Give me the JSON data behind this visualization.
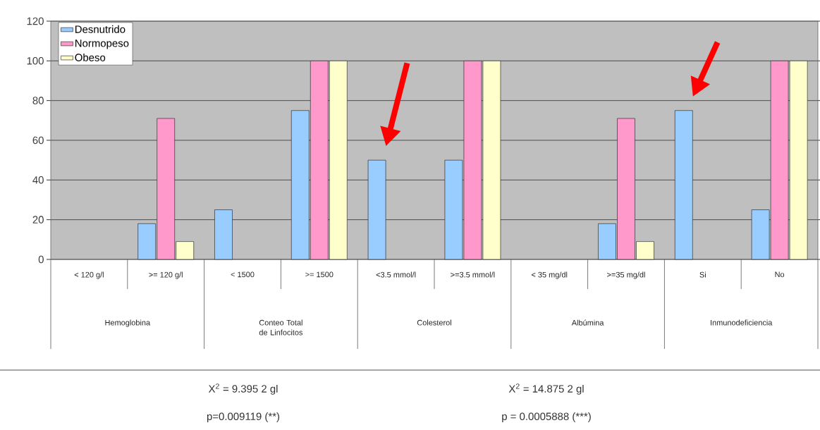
{
  "chart_data": {
    "type": "bar",
    "categories": [
      "< 120 g/l",
      ">= 120 g/l",
      "< 1500",
      ">= 1500",
      "<3.5 mmol/l",
      ">=3.5 mmol/l",
      "< 35 mg/dl",
      ">=35 mg/dl",
      "Si",
      "No"
    ],
    "series": [
      {
        "name": "Desnutrido",
        "color": "#99ccff",
        "values": [
          null,
          18,
          25,
          75,
          50,
          50,
          null,
          18,
          75,
          25
        ]
      },
      {
        "name": "Normopeso",
        "color": "#ff99cc",
        "values": [
          null,
          71,
          null,
          100,
          null,
          100,
          null,
          71,
          null,
          100
        ]
      },
      {
        "name": "Obeso",
        "color": "#ffffcc",
        "values": [
          null,
          9,
          null,
          100,
          null,
          100,
          null,
          9,
          null,
          100
        ]
      }
    ],
    "ylim": [
      0,
      120
    ],
    "yticks": [
      0,
      20,
      40,
      60,
      80,
      100,
      120
    ],
    "grid": "y",
    "legend": "top left",
    "annotations": [
      "Hemoglobina",
      "Conteo Total de Linfocitos",
      "Colesterol",
      "Albúmina",
      "Inmunodeficiencia",
      "X$^{2}$ = 9.395   2 gl",
      "p=0.009119 (**)",
      "X$^{2}$ = 14.875   2 gl",
      "p = 0.0005888 (***)"
    ]
  }
}
